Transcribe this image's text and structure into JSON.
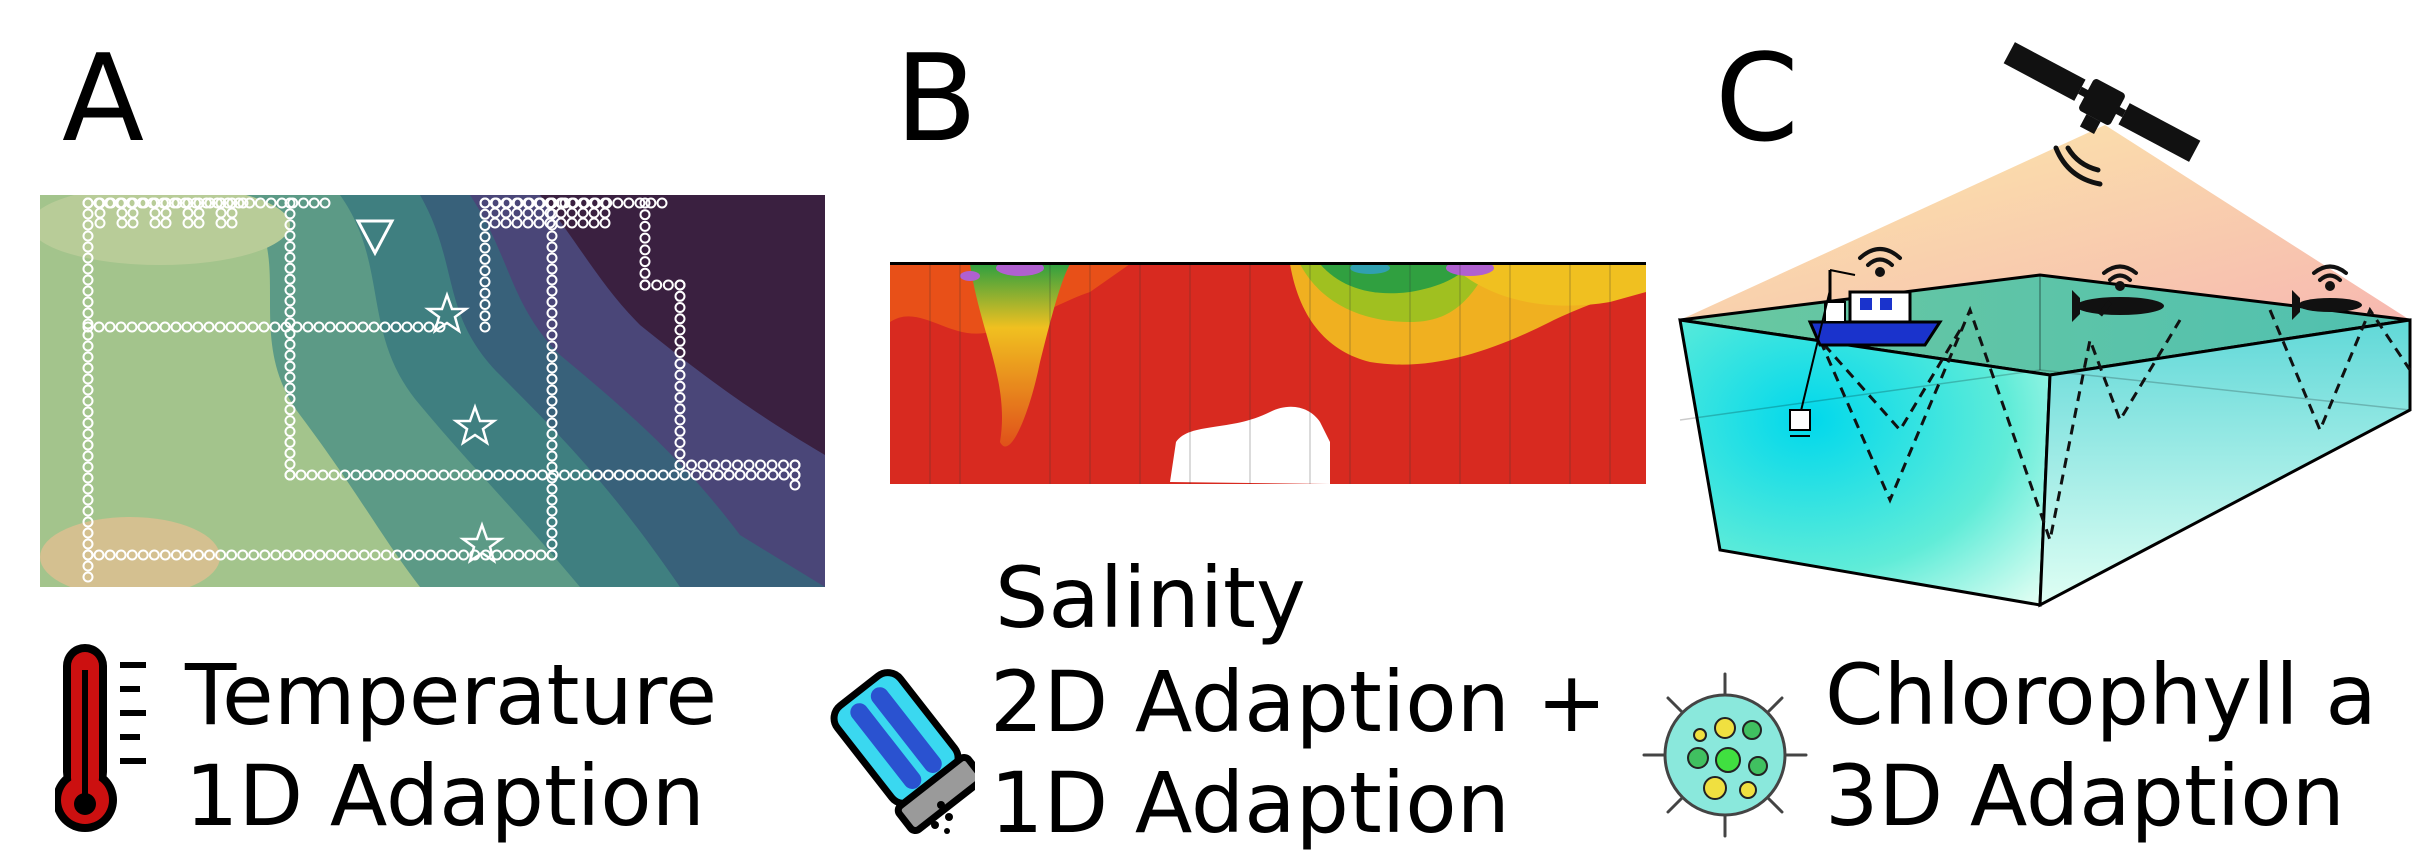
{
  "panels": [
    {
      "letter": "A",
      "caption_lines": [
        "Temperature",
        "1D Adaption"
      ],
      "icon": "thermometer-icon"
    },
    {
      "letter": "B",
      "caption_lines": [
        "Salinity",
        "2D Adaption +",
        "1D Adaption"
      ],
      "icon": "salt-shaker-icon"
    },
    {
      "letter": "C",
      "caption_lines": [
        "Chlorophyll a",
        "3D Adaption"
      ],
      "icon": "phytoplankton-cell-icon"
    }
  ],
  "colors": {
    "temp_low": "#3a2040",
    "temp_mid": "#3f7f7f",
    "temp_high": "#a8c48c",
    "salinity_high": "#d42820",
    "salinity_mid": "#f0c020",
    "salinity_low": "#40a040",
    "water_top": "#00d8e8",
    "water_bottom": "#e6fff4",
    "thermometer_red": "#cc1010",
    "boat_blue": "#1a33cc"
  }
}
